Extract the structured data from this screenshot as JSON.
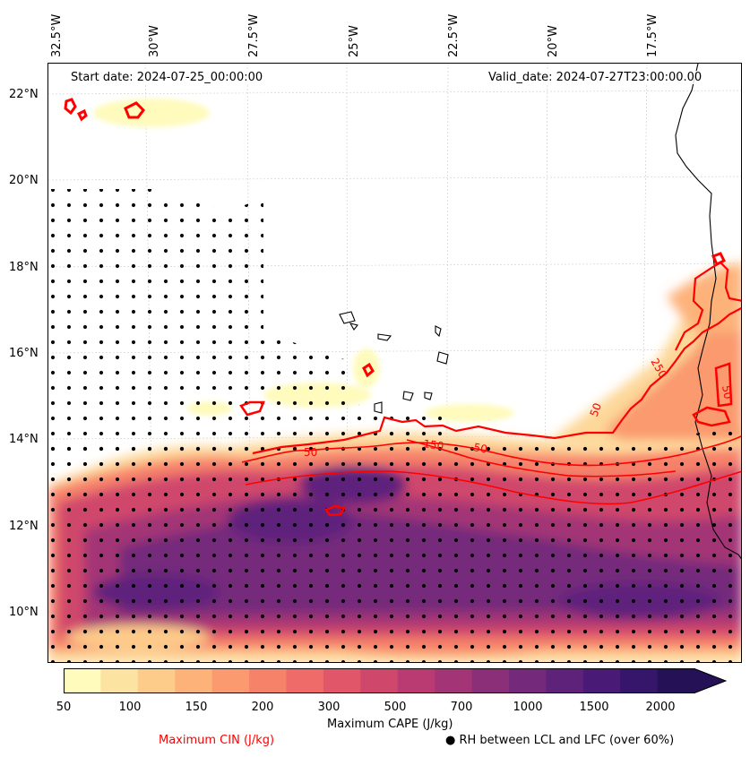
{
  "map": {
    "start_date": "Start date: 2024-07-25_00:00:00",
    "valid_date": "Valid_date: 2024-07-27T23:00:00.00",
    "lon_labels": [
      "32.5°W",
      "30°W",
      "27.5°W",
      "25°W",
      "22.5°W",
      "20°W",
      "17.5°W"
    ],
    "lat_labels": [
      "22°N",
      "20°N",
      "18°N",
      "16°N",
      "14°N",
      "12°N",
      "10°N"
    ],
    "contour_labels": [
      "150",
      "50",
      "50",
      "250",
      "50",
      "50"
    ],
    "colors": {
      "cin_contour": "#ff0000",
      "coastline": "#000000",
      "stipple": "#000000",
      "cape_low": "#fffcbf",
      "cape_high": "#1f1147"
    }
  },
  "colorbar": {
    "label": "Maximum CAPE (J/kg)",
    "ticks": [
      "50",
      "100",
      "150",
      "200",
      "300",
      "500",
      "700",
      "1000",
      "1500",
      "2000"
    ],
    "colors": [
      "#fffbbd",
      "#fde3a2",
      "#fdcb8a",
      "#fdb27a",
      "#fa9a6e",
      "#f7826a",
      "#ef6b69",
      "#e25669",
      "#d0476c",
      "#ba3b71",
      "#a33576",
      "#8c2f79",
      "#75297b",
      "#5f227b",
      "#4a1b76",
      "#36166a",
      "#241156"
    ]
  },
  "legend": {
    "cin_label": "Maximum CIN (J/kg)",
    "rh_label": "RH between LCL and LFC (over 60%)",
    "rh_marker": "●"
  }
}
